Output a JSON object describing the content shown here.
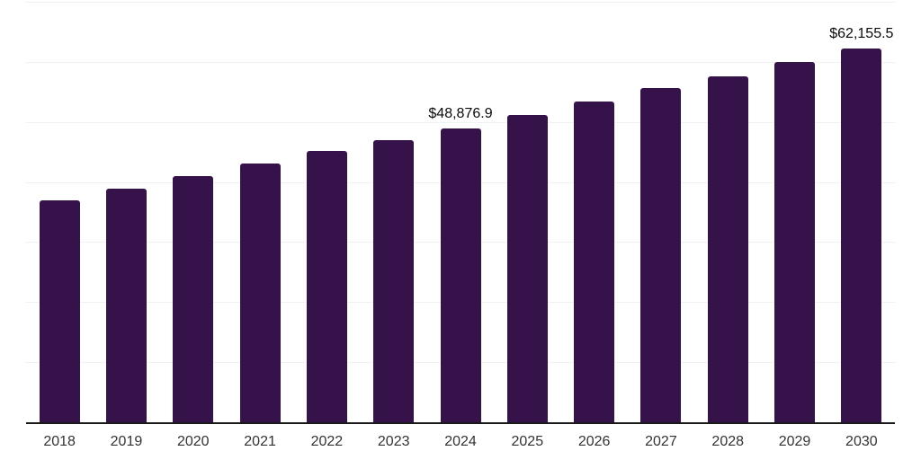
{
  "chart_data": {
    "type": "bar",
    "title": "",
    "xlabel": "",
    "ylabel": "",
    "categories": [
      "2018",
      "2019",
      "2020",
      "2021",
      "2022",
      "2023",
      "2024",
      "2025",
      "2026",
      "2027",
      "2028",
      "2029",
      "2030"
    ],
    "values": [
      36900,
      38900,
      41000,
      43100,
      45200,
      47000,
      48876.9,
      51200,
      53400,
      55600,
      57600,
      60000,
      62155.5
    ],
    "data_labels": [
      {
        "category": "2024",
        "text": "$48,876.9"
      },
      {
        "category": "2030",
        "text": "$62,155.5"
      }
    ],
    "ylim": [
      0,
      70000
    ],
    "gridline_interval": 10000,
    "grid": "horizontal",
    "legend": "none",
    "y_axis_labels_visible": false,
    "colors": {
      "bar": "#351249",
      "gridline": "#f1f1f1",
      "axis": "#1a1a1a",
      "tick_label": "#333333",
      "data_label": "#0a0a0a"
    }
  }
}
